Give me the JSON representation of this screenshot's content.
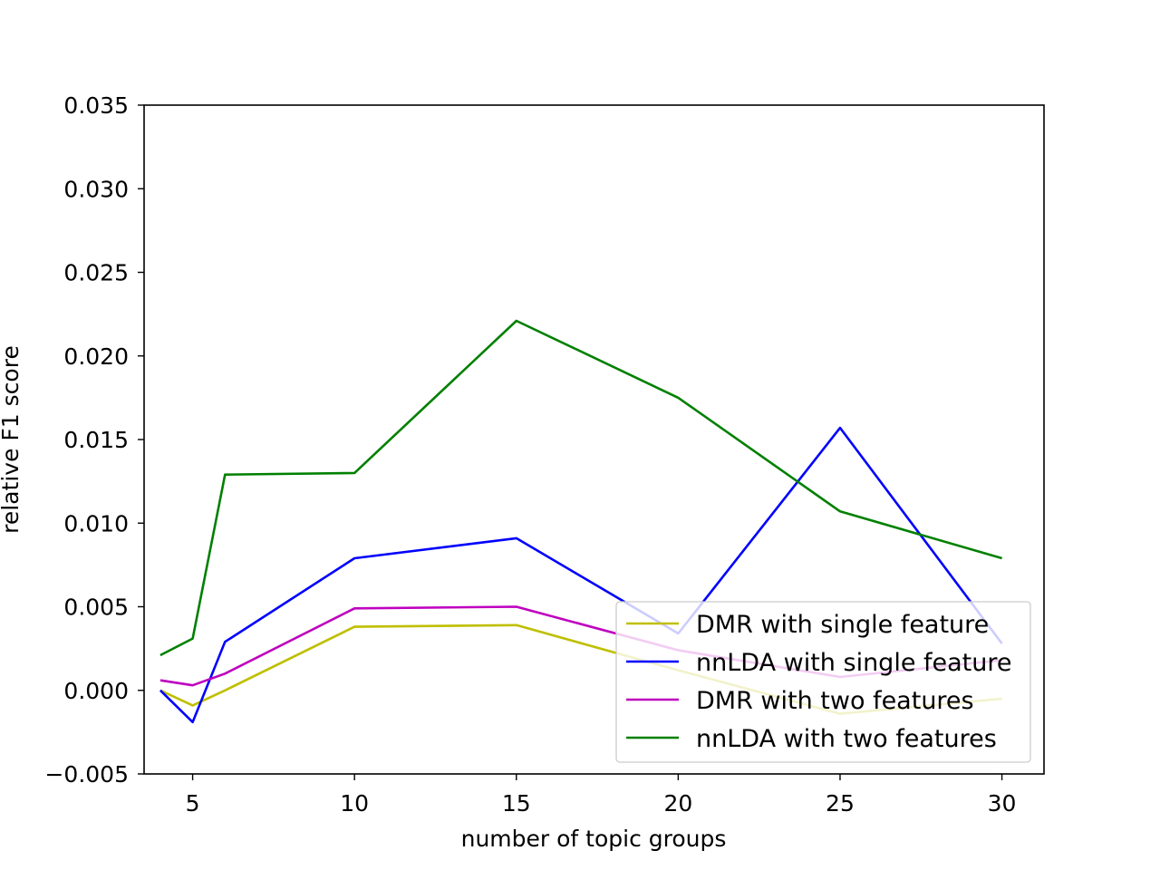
{
  "chart_data": {
    "type": "line",
    "title": "",
    "xlabel": "number of topic groups",
    "ylabel": "relative F1 score",
    "xlim": [
      3.5,
      31.3
    ],
    "ylim": [
      -0.005,
      0.035
    ],
    "x": [
      4,
      5,
      6,
      10,
      15,
      20,
      25,
      30
    ],
    "xticks": [
      5,
      10,
      15,
      20,
      25,
      30
    ],
    "xtick_labels": [
      "5",
      "10",
      "15",
      "20",
      "25",
      "30"
    ],
    "yticks": [
      -0.005,
      0.0,
      0.005,
      0.01,
      0.015,
      0.02,
      0.025,
      0.03,
      0.035
    ],
    "ytick_labels": [
      "−0.005",
      "0.000",
      "0.005",
      "0.010",
      "0.015",
      "0.020",
      "0.025",
      "0.030",
      "0.035"
    ],
    "grid": false,
    "legend_position": "lower-right",
    "series": [
      {
        "name": "DMR with single feature",
        "color": "#bfbf00",
        "values": [
          0.0,
          -0.0009,
          0.0,
          0.0038,
          0.0039,
          0.0012,
          -0.0014,
          -0.0005
        ]
      },
      {
        "name": "nnLDA with single feature",
        "color": "#0000ff",
        "values": [
          0.0,
          -0.0019,
          0.0029,
          0.0079,
          0.0091,
          0.0034,
          0.0157,
          0.0028
        ]
      },
      {
        "name": "DMR with two features",
        "color": "#bf00bf",
        "values": [
          0.0006,
          0.0003,
          0.001,
          0.0049,
          0.005,
          0.0024,
          0.0008,
          0.0018
        ]
      },
      {
        "name": "nnLDA with two features",
        "color": "#008000",
        "values": [
          0.0021,
          0.0031,
          0.0129,
          0.013,
          0.0221,
          0.0175,
          0.0107,
          0.0079
        ]
      }
    ]
  }
}
